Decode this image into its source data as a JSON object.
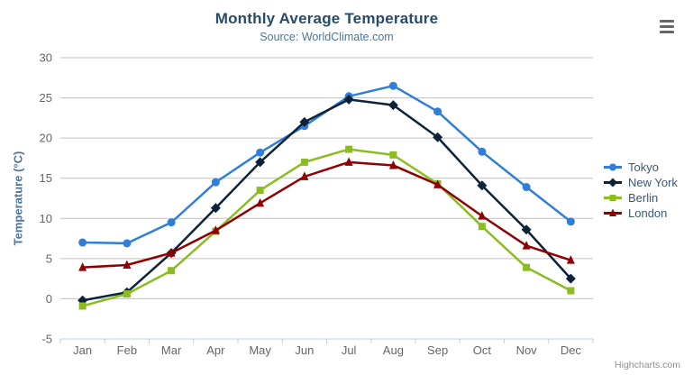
{
  "credits": "Highcharts.com",
  "icons": {
    "context_menu": "hamburger-icon"
  },
  "colors": {
    "title": "#274b6d",
    "subtitle": "#4d759e",
    "axis_title": "#4d759e",
    "axis_labels": "#666666",
    "gridline": "#c0c0c0",
    "axis_line": "#c0d0e0",
    "legend_text": "#3e576f",
    "credits_text": "#909090",
    "menu_icon": "#666666"
  },
  "chart_data": {
    "type": "line",
    "title": "Monthly Average Temperature",
    "subtitle": "Source: WorldClimate.com",
    "xlabel": "",
    "ylabel": "Temperature (°C)",
    "categories": [
      "Jan",
      "Feb",
      "Mar",
      "Apr",
      "May",
      "Jun",
      "Jul",
      "Aug",
      "Sep",
      "Oct",
      "Nov",
      "Dec"
    ],
    "ylim": [
      -5,
      30
    ],
    "yticks": [
      -5,
      0,
      5,
      10,
      15,
      20,
      25,
      30
    ],
    "grid": true,
    "legend_position": "right",
    "series": [
      {
        "name": "Tokyo",
        "color": "#2f7ed8",
        "symbol": "circle",
        "values": [
          7.0,
          6.9,
          9.5,
          14.5,
          18.2,
          21.5,
          25.2,
          26.5,
          23.3,
          18.3,
          13.9,
          9.6
        ]
      },
      {
        "name": "New York",
        "color": "#0d233a",
        "symbol": "diamond",
        "values": [
          -0.2,
          0.8,
          5.7,
          11.3,
          17.0,
          22.0,
          24.8,
          24.1,
          20.1,
          14.1,
          8.6,
          2.5
        ]
      },
      {
        "name": "Berlin",
        "color": "#8bbc21",
        "symbol": "square",
        "values": [
          -0.9,
          0.6,
          3.5,
          8.4,
          13.5,
          17.0,
          18.6,
          17.9,
          14.3,
          9.0,
          3.9,
          1.0
        ]
      },
      {
        "name": "London",
        "color": "#910000",
        "symbol": "triangle",
        "values": [
          3.9,
          4.2,
          5.7,
          8.5,
          11.9,
          15.2,
          17.0,
          16.6,
          14.2,
          10.3,
          6.6,
          4.8
        ]
      }
    ]
  }
}
